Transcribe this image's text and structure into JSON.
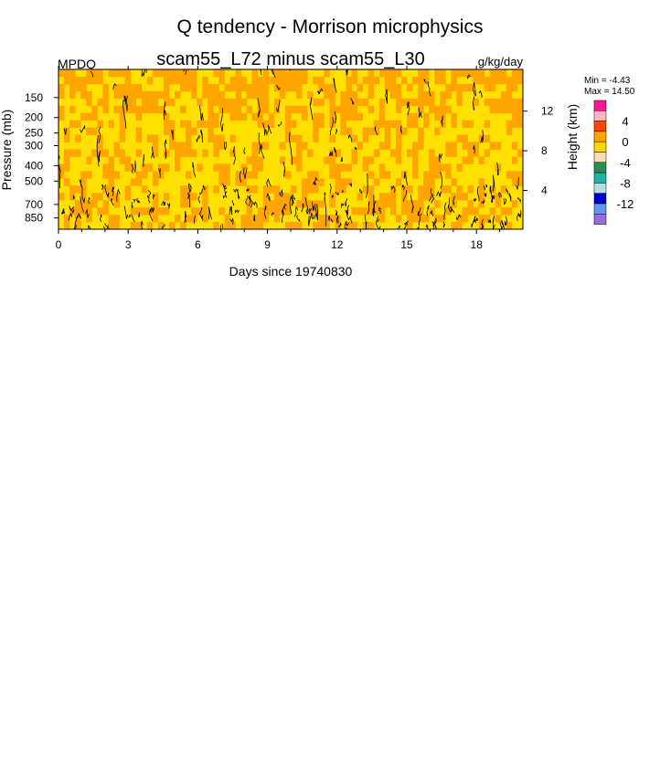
{
  "chart_data": {
    "type": "heatmap",
    "title": "Q tendency - Morrison microphysics",
    "subtitle": "scam55_L72 minus scam55_L30",
    "left_string": "MPDQ",
    "units": "g/kg/day",
    "xlabel": "Days since 19740830",
    "ylabel": "Pressure (mb)",
    "ylabel_right": "Height (km)",
    "x_ticks": [
      "0",
      "3",
      "6",
      "9",
      "12",
      "15",
      "18"
    ],
    "x_tick_values": [
      0,
      3,
      6,
      9,
      12,
      15,
      18
    ],
    "xlim": [
      0,
      20
    ],
    "y_ticks": [
      "150",
      "200",
      "250",
      "300",
      "400",
      "500",
      "700",
      "850"
    ],
    "y_tick_values": [
      150,
      200,
      250,
      300,
      400,
      500,
      700,
      850
    ],
    "ylim": [
      1000,
      100
    ],
    "y_scale": "log",
    "y_right_ticks": [
      "12",
      "8",
      "4"
    ],
    "y_right_tick_values": [
      12,
      8,
      4
    ],
    "min_label": "Min =  -4.43",
    "max_label": "Max =  14.50",
    "colorbar": {
      "labels": [
        "4",
        "0",
        "-4",
        "-8",
        "-12"
      ],
      "colors": [
        "#ff1493",
        "#ffb6c1",
        "#ff4500",
        "#ffa500",
        "#ffd700",
        "#f5deb3",
        "#2e8b57",
        "#20b2aa",
        "#b0e0e6",
        "#0000cd",
        "#6495ed",
        "#9370db"
      ]
    },
    "fill_colors": {
      "positive": "#ffa500",
      "near_zero": "#ffe000",
      "contour_line": "#000000"
    }
  }
}
